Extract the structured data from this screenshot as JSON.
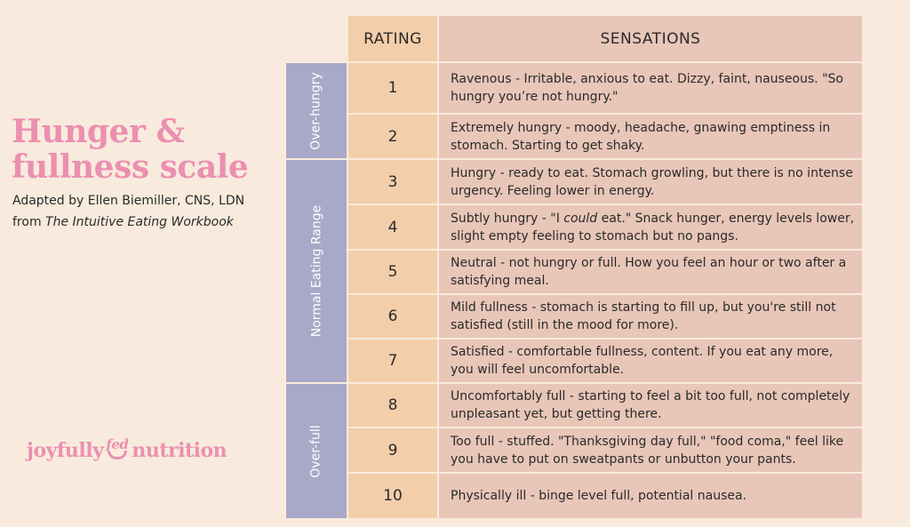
{
  "title": {
    "line1": "Hunger &",
    "line2": "fullness scale"
  },
  "credit": {
    "line1": "Adapted by Ellen Biemiller, CNS, LDN",
    "prefix": "from ",
    "book": "The Intuitive Eating Workbook"
  },
  "logo": {
    "part1": "joyfully",
    "part2": "fed",
    "part3": "nutrition"
  },
  "table": {
    "rating_header": "RATING",
    "sensations_header": "SENSATIONS",
    "categories": [
      "Over-hungry",
      "Normal Eating Range",
      "Over-full"
    ],
    "rows": [
      {
        "rating": "1",
        "text": "Ravenous - Irritable, anxious to eat. Dizzy, faint, nauseous. \"So hungry you’re not hungry.\""
      },
      {
        "rating": "2",
        "text": "Extremely hungry - moody, headache, gnawing emptiness in stomach. Starting to get shaky."
      },
      {
        "rating": "3",
        "text": "Hungry - ready to eat. Stomach growling, but there is no intense urgency. Feeling lower in energy."
      },
      {
        "rating": "4",
        "text_before": "Subtly hungry - \"I ",
        "text_em": "could",
        "text_after": " eat.\" Snack hunger, energy levels lower, slight empty feeling to stomach but no pangs."
      },
      {
        "rating": "5",
        "text": "Neutral - not hungry or full. How you feel an hour or two after a satisfying meal."
      },
      {
        "rating": "6",
        "text": "Mild fullness - stomach is starting to fill up, but you're still not satisfied (still in the mood for more)."
      },
      {
        "rating": "7",
        "text": "Satisfied - comfortable fullness, content. If you eat any more, you will feel uncomfortable."
      },
      {
        "rating": "8",
        "text": "Uncomfortably full - starting to feel a bit too full, not completely unpleasant yet, but getting there."
      },
      {
        "rating": "9",
        "text": "Too full - stuffed. \"Thanksgiving day full,\" \"food coma,\" feel like you have to put on sweatpants or unbutton your pants."
      },
      {
        "rating": "10",
        "text": "Physically ill - binge level full, potential nausea."
      }
    ]
  },
  "colors": {
    "background": "#f8ebdd",
    "title_pink": "#ec8fb1",
    "category_purple": "#a8a8c8",
    "rating_peach": "#f3ceaa",
    "sensation_rose": "#e8c6b8"
  }
}
